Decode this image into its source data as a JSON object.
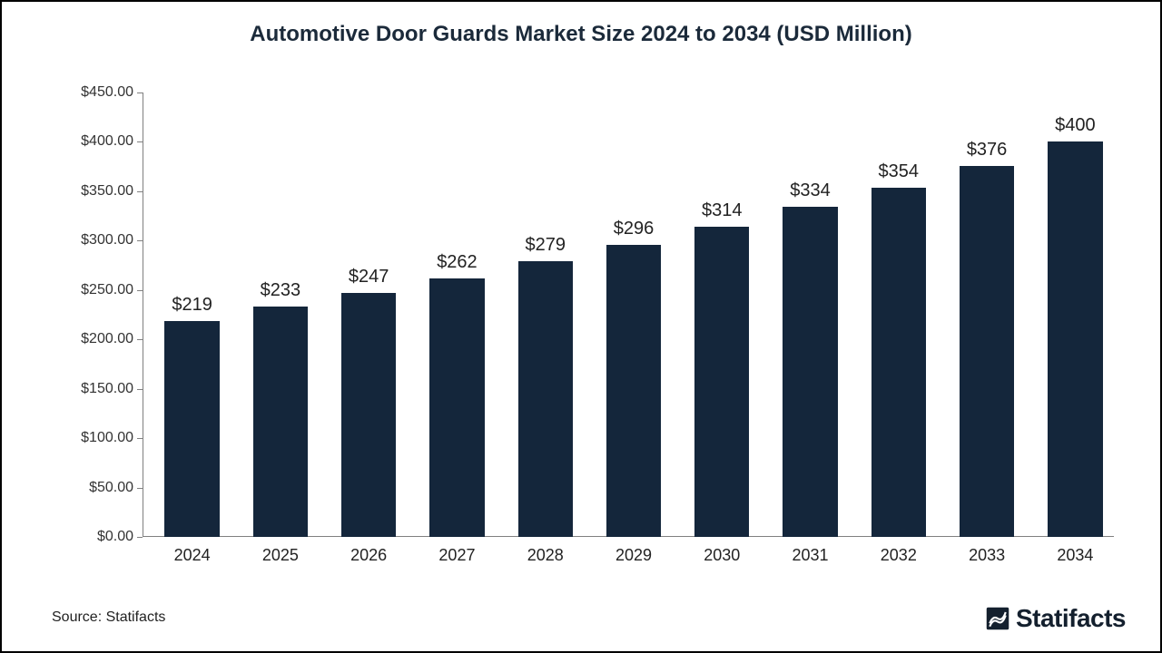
{
  "chart": {
    "type": "bar",
    "title": "Automotive Door Guards Market Size 2024 to 2034 (USD Million)",
    "title_fontsize": 24,
    "title_color": "#1b2a3a",
    "background_color": "#ffffff",
    "border_color": "#000000",
    "categories": [
      "2024",
      "2025",
      "2026",
      "2027",
      "2028",
      "2029",
      "2030",
      "2031",
      "2032",
      "2033",
      "2034"
    ],
    "values": [
      219,
      233,
      247,
      262,
      279,
      296,
      314,
      334,
      354,
      376,
      400
    ],
    "value_labels": [
      "$219",
      "$233",
      "$247",
      "$262",
      "$279",
      "$296",
      "$314",
      "$334",
      "$354",
      "$376",
      "$400"
    ],
    "bar_color": "#14263b",
    "bar_width_ratio": 0.62,
    "ylim": [
      0,
      450
    ],
    "ytick_step": 50,
    "ytick_labels": [
      "$0.00",
      "$50.00",
      "$100.00",
      "$150.00",
      "$200.00",
      "$250.00",
      "$300.00",
      "$350.00",
      "$400.00",
      "$450.00"
    ],
    "axis_color": "#808080",
    "axis_label_color": "#333333",
    "axis_label_fontsize": 16,
    "value_label_fontsize": 20,
    "category_label_fontsize": 18,
    "grid": false
  },
  "footer": {
    "source_text": "Source: Statifacts",
    "source_fontsize": 16,
    "brand_text": "Statifacts",
    "brand_fontsize": 28,
    "brand_color": "#14202e"
  }
}
